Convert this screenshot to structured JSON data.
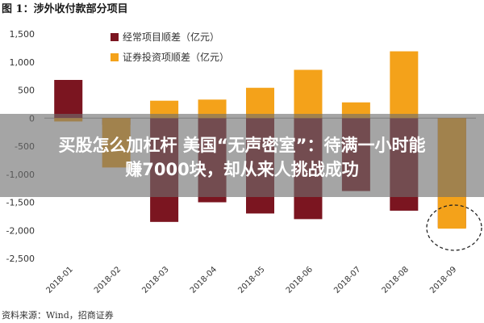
{
  "chart_data": {
    "type": "bar",
    "title": "图 1：涉外收付款部分项目",
    "categories": [
      "2018-01",
      "2018-02",
      "2018-03",
      "2018-04",
      "2018-05",
      "2018-06",
      "2018-07",
      "2018-08",
      "2018-09"
    ],
    "series": [
      {
        "name": "经常项目顺差（亿元）",
        "color": "#7b1520",
        "values": [
          680,
          -120,
          -1850,
          -1500,
          -1700,
          -1800,
          -1300,
          -1650,
          -1950
        ]
      },
      {
        "name": "证券投资项顺差（亿元）",
        "color": "#f4a21a",
        "values": [
          -60,
          -880,
          310,
          330,
          540,
          860,
          280,
          1190,
          -1970
        ]
      }
    ],
    "ylim": [
      -2500,
      1500
    ],
    "yticks": [
      1500,
      1000,
      500,
      0,
      -500,
      -1000,
      -1500,
      -2000,
      -2500
    ],
    "ytick_labels": [
      "1,500",
      "1,000",
      "500",
      "0",
      "-500",
      "-1,000",
      "-1,500",
      "-2,000",
      "-2,500"
    ],
    "legend_position": "top-center",
    "grid": false,
    "annotation": "dashed circle around 2018-09"
  },
  "source_text": "资料来源：Wind，招商证券",
  "overlay": {
    "line1": "买股怎么加杠杆 美国“无声密室”：待满一小时能",
    "line2": "赚7000块，却从来人挑战成功"
  }
}
